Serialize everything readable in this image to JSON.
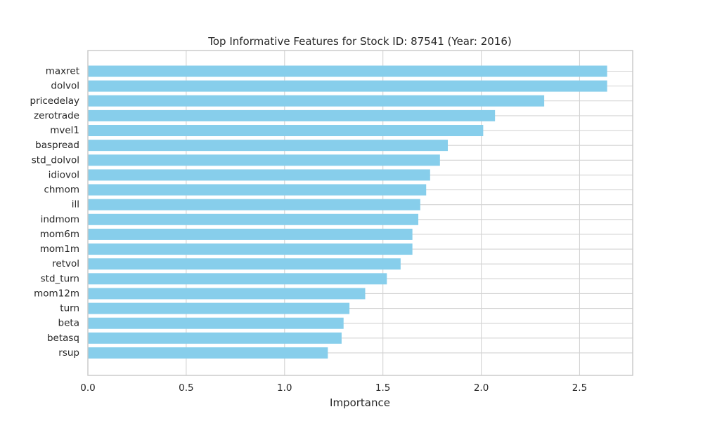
{
  "chart_data": {
    "type": "bar",
    "orientation": "horizontal",
    "title": "Top Informative Features for Stock ID: 87541 (Year: 2016)",
    "xlabel": "Importance",
    "ylabel": "",
    "xlim": [
      0,
      2.77
    ],
    "xticks": [
      0.0,
      0.5,
      1.0,
      1.5,
      2.0,
      2.5
    ],
    "xtick_labels": [
      "0.0",
      "0.5",
      "1.0",
      "1.5",
      "2.0",
      "2.5"
    ],
    "grid": true,
    "bar_color": "#87ceeb",
    "categories": [
      "maxret",
      "dolvol",
      "pricedelay",
      "zerotrade",
      "mvel1",
      "baspread",
      "std_dolvol",
      "idiovol",
      "chmom",
      "ill",
      "indmom",
      "mom6m",
      "mom1m",
      "retvol",
      "std_turn",
      "mom12m",
      "turn",
      "beta",
      "betasq",
      "rsup"
    ],
    "values": [
      2.64,
      2.64,
      2.32,
      2.07,
      2.01,
      1.83,
      1.79,
      1.74,
      1.72,
      1.69,
      1.68,
      1.65,
      1.65,
      1.59,
      1.52,
      1.41,
      1.33,
      1.3,
      1.29,
      1.22
    ]
  }
}
